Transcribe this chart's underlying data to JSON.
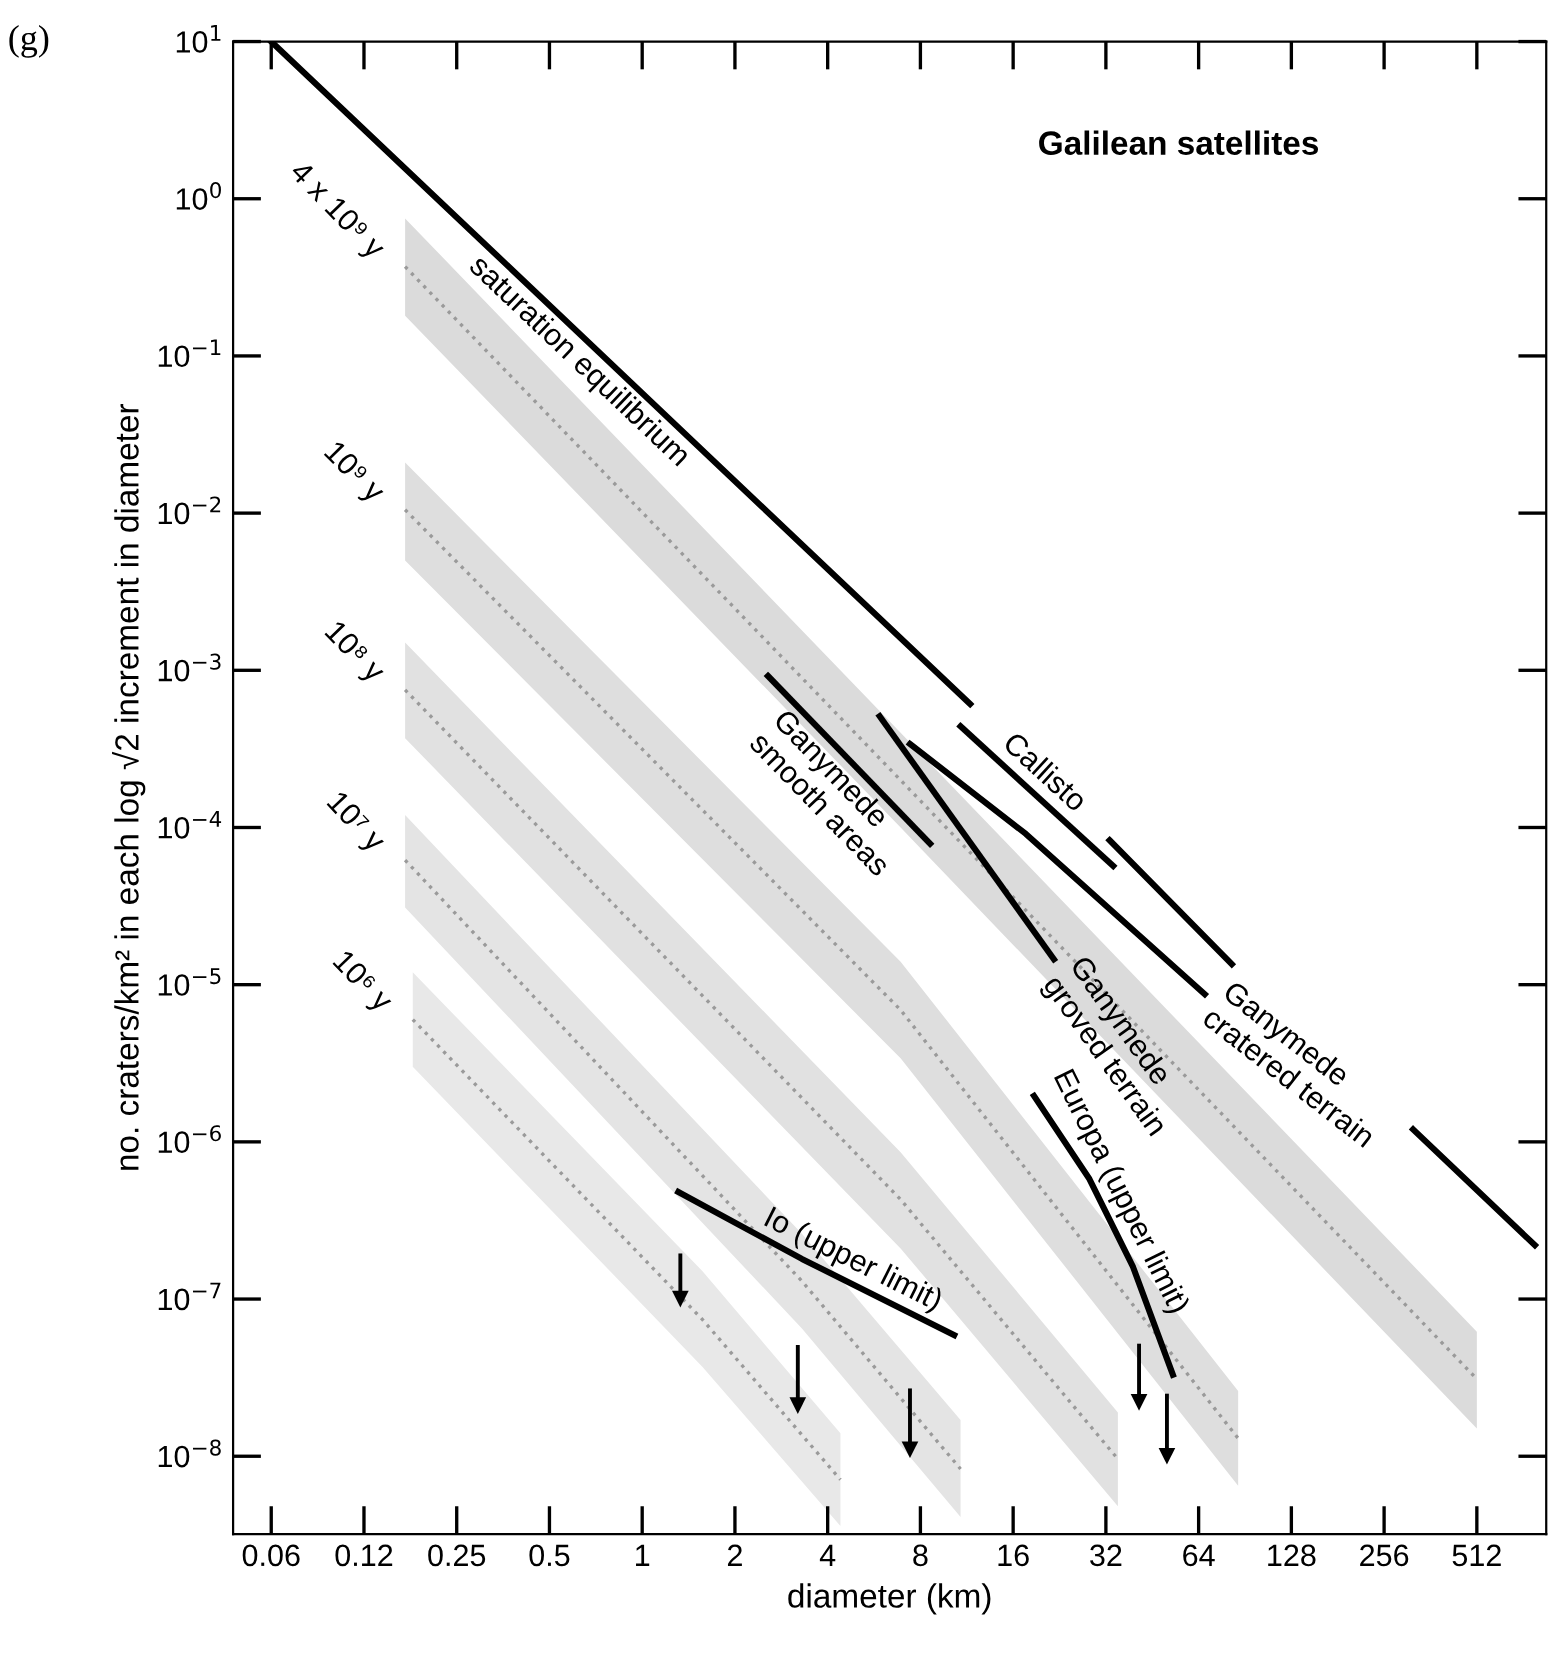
{
  "chart_data": {
    "type": "line",
    "title": "Galilean satellites",
    "xlabel": "diameter (km)",
    "ylabel": "no. craters/km² in each log √2 increment in diameter",
    "annotations": [
      "(g)"
    ],
    "log": "xy",
    "xlim": [
      0.047,
      860
    ],
    "ylim": [
      3.2e-09,
      10
    ],
    "xticks": [
      {
        "value": 0.0625,
        "label": "0.06"
      },
      {
        "value": 0.125,
        "label": "0.12"
      },
      0.25,
      0.5,
      1,
      2,
      4,
      8,
      16,
      32,
      64,
      128,
      256,
      512
    ],
    "yticks": [
      {
        "value": 1e-08,
        "label": "10$^{−8}$"
      },
      {
        "value": 1e-07,
        "label": "10$^{−7}$"
      },
      {
        "value": 1e-06,
        "label": "10$^{−6}$"
      },
      {
        "value": 1e-05,
        "label": "10$^{−5}$"
      },
      {
        "value": 0.0001,
        "label": "10$^{−4}$"
      },
      {
        "value": 0.001,
        "label": "10$^{−3}$"
      },
      {
        "value": 0.01,
        "label": "10$^{−2}$"
      },
      {
        "value": 0.1,
        "label": "10$^{−1}$"
      },
      {
        "value": 1,
        "label": "10$^{0}$"
      },
      {
        "value": 10,
        "label": "10$^{1}$"
      }
    ],
    "grid": false,
    "legend": false,
    "series": [
      {
        "name": "4 x 10⁹ y",
        "type": "line",
        "line_style": "dotted",
        "color": "#9a9a9a",
        "x": [
          0.17,
          6.9,
          512
        ],
        "values": [
          0.37,
          0.0002,
          3.1e-08
        ],
        "lower": [
          0.18,
          0.0001,
          1.5e-08
        ],
        "upper": [
          0.75,
          0.0004,
          6.2e-08
        ]
      },
      {
        "name": "10⁹ y",
        "type": "line",
        "line_style": "dotted",
        "color": "#9a9a9a",
        "x": [
          0.17,
          6.9,
          86
        ],
        "values": [
          0.0105,
          6.9e-06,
          1.3e-08
        ],
        "lower": [
          0.005,
          3.4e-06,
          6.5e-09
        ],
        "upper": [
          0.021,
          1.4e-05,
          2.6e-08
        ]
      },
      {
        "name": "10⁸ y",
        "type": "line",
        "line_style": "dotted",
        "color": "#9a9a9a",
        "x": [
          0.17,
          6.9,
          35
        ],
        "values": [
          0.00075,
          4.3e-07,
          9.6e-09
        ],
        "lower": [
          0.00037,
          2.1e-07,
          4.8e-09
        ],
        "upper": [
          0.0015,
          8.6e-07,
          1.9e-08
        ]
      },
      {
        "name": "10⁷ y",
        "type": "line",
        "line_style": "dotted",
        "color": "#9a9a9a",
        "x": [
          0.17,
          3.3,
          10.8
        ],
        "values": [
          6.2e-05,
          1.3e-07,
          8.3e-09
        ],
        "lower": [
          3.1e-05,
          6.5e-08,
          4.1e-09
        ],
        "upper": [
          0.00012,
          2.6e-07,
          1.7e-08
        ]
      },
      {
        "name": "10⁶ y",
        "type": "line",
        "line_style": "dotted",
        "color": "#9a9a9a",
        "x": [
          0.18,
          1.57,
          4.4
        ],
        "values": [
          6e-06,
          7.4e-08,
          7.1e-09
        ],
        "lower": [
          3e-06,
          3.7e-08,
          3.6e-09
        ],
        "upper": [
          1.2e-05,
          1.5e-07,
          1.4e-08
        ]
      },
      {
        "name": "saturation equilibrium",
        "line_style": "solid",
        "color": "#000000",
        "x": [
          0.0625,
          11.6,
          20,
          32.9,
          82,
          160,
          318,
          790
        ],
        "values": [
          10,
          0.00061,
          null,
          8.3e-05,
          1.35e-05,
          null,
          1.2e-06,
          2.2e-07
        ]
      },
      {
        "name": "Callisto",
        "line_style": "solid",
        "color": "#000000",
        "x": [
          10.8,
          33.8
        ],
        "values": [
          0.00044,
          5.7e-05
        ]
      },
      {
        "name": "Ganymede\ncratered terrain",
        "line_style": "solid",
        "color": "#000000",
        "x": [
          7.4,
          17.6,
          67
        ],
        "values": [
          0.00034,
          9.1e-05,
          8.7e-06
        ]
      },
      {
        "name": "Ganymede\ngroved terrain",
        "line_style": "solid",
        "color": "#000000",
        "x": [
          5.9,
          21.7
        ],
        "values": [
          0.00051,
          1.45e-05
        ]
      },
      {
        "name": "Ganymede\nsmooth areas",
        "line_style": "solid",
        "color": "#000000",
        "x": [
          2.56,
          8.6
        ],
        "values": [
          0.00092,
          7.9e-05
        ]
      },
      {
        "name": "Europa (upper limit)",
        "line_style": "solid",
        "color": "#000000",
        "x": [
          18.7,
          28.3,
          39.2,
          52.8
        ],
        "values": [
          1.96e-06,
          5.8e-07,
          1.6e-07,
          3.3e-08
        ]
      },
      {
        "name": "Io (upper limit)",
        "line_style": "solid",
        "color": "#000000",
        "x": [
          1.31,
          3.3,
          10.3
        ],
        "values": [
          4.8e-07,
          1.8e-07,
          5.9e-08
        ]
      },
      {
        "type": "scatter",
        "marker": "triangle",
        "color": "#000000",
        "x": [
          1.33,
          3.2,
          7.4,
          41,
          50.5
        ],
        "values": [
          1e-07,
          2.1e-08,
          1.1e-08,
          2.2e-08,
          1e-08
        ],
        "errors": [
          [
            1e-07,
            1.95e-07
          ],
          [
            2.1e-08,
            5.1e-08
          ],
          [
            1.1e-08,
            2.7e-08
          ],
          [
            2.2e-08,
            5.2e-08
          ],
          [
            1e-08,
            2.5e-08
          ]
        ]
      }
    ]
  }
}
